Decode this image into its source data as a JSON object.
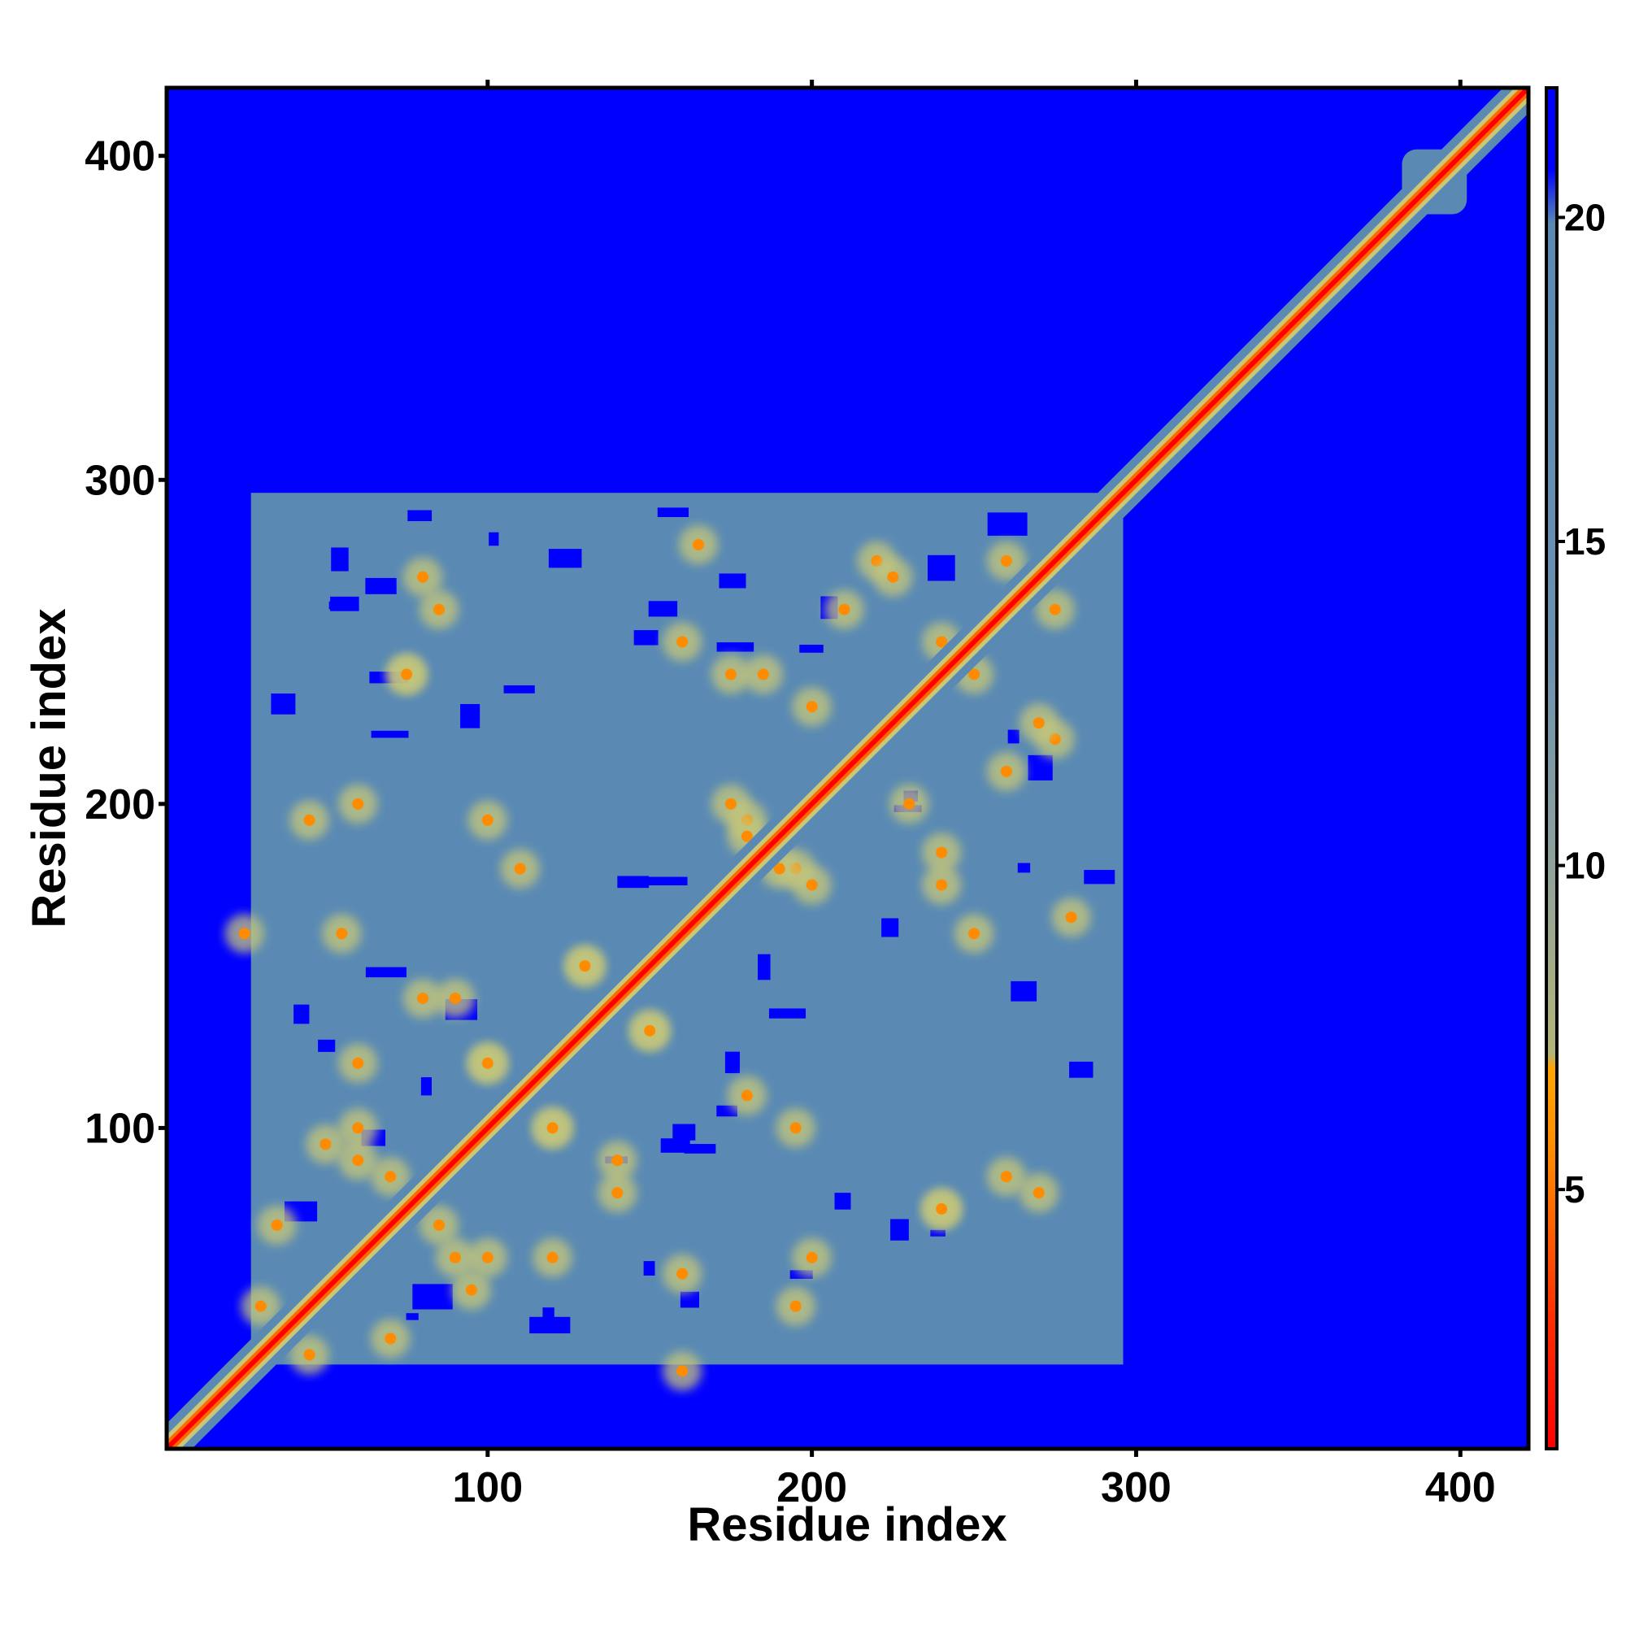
{
  "chart_data": {
    "type": "heatmap",
    "title": "",
    "xlabel": "Residue index",
    "ylabel": "Residue index",
    "xlim": [
      1,
      421
    ],
    "ylim": [
      1,
      421
    ],
    "x_ticks": [
      100,
      200,
      300,
      400
    ],
    "y_ticks": [
      100,
      200,
      300,
      400
    ],
    "colorbar": {
      "range": [
        1,
        22
      ],
      "ticks": [
        5,
        10,
        15,
        20
      ],
      "colors": [
        "#ff0000",
        "#ff8c00",
        "#c8c878",
        "#5a8ab4",
        "#0000ff"
      ]
    },
    "matrix_description_values": {
      "dense_block": [
        1,
        300
      ],
      "diagonal_band_end": 421,
      "isolated_domain_center": 392
    },
    "off_diagonal_contacts": [
      {
        "x": 35,
        "y": 70
      },
      {
        "x": 50,
        "y": 95
      },
      {
        "x": 60,
        "y": 100
      },
      {
        "x": 70,
        "y": 85
      },
      {
        "x": 80,
        "y": 140
      },
      {
        "x": 90,
        "y": 60
      },
      {
        "x": 100,
        "y": 120
      },
      {
        "x": 110,
        "y": 180
      },
      {
        "x": 120,
        "y": 100
      },
      {
        "x": 130,
        "y": 150
      },
      {
        "x": 140,
        "y": 90
      },
      {
        "x": 150,
        "y": 130
      },
      {
        "x": 160,
        "y": 250
      },
      {
        "x": 175,
        "y": 240
      },
      {
        "x": 180,
        "y": 195
      },
      {
        "x": 190,
        "y": 180
      },
      {
        "x": 200,
        "y": 175
      },
      {
        "x": 210,
        "y": 260
      },
      {
        "x": 220,
        "y": 275
      },
      {
        "x": 230,
        "y": 200
      },
      {
        "x": 240,
        "y": 185
      },
      {
        "x": 250,
        "y": 240
      },
      {
        "x": 260,
        "y": 275
      },
      {
        "x": 270,
        "y": 225
      },
      {
        "x": 280,
        "y": 165
      },
      {
        "x": 60,
        "y": 200
      },
      {
        "x": 75,
        "y": 240
      },
      {
        "x": 85,
        "y": 260
      },
      {
        "x": 45,
        "y": 30
      },
      {
        "x": 25,
        "y": 160
      },
      {
        "x": 100,
        "y": 195
      },
      {
        "x": 120,
        "y": 60
      },
      {
        "x": 160,
        "y": 55
      },
      {
        "x": 195,
        "y": 45
      },
      {
        "x": 240,
        "y": 75
      },
      {
        "x": 270,
        "y": 80
      }
    ]
  }
}
